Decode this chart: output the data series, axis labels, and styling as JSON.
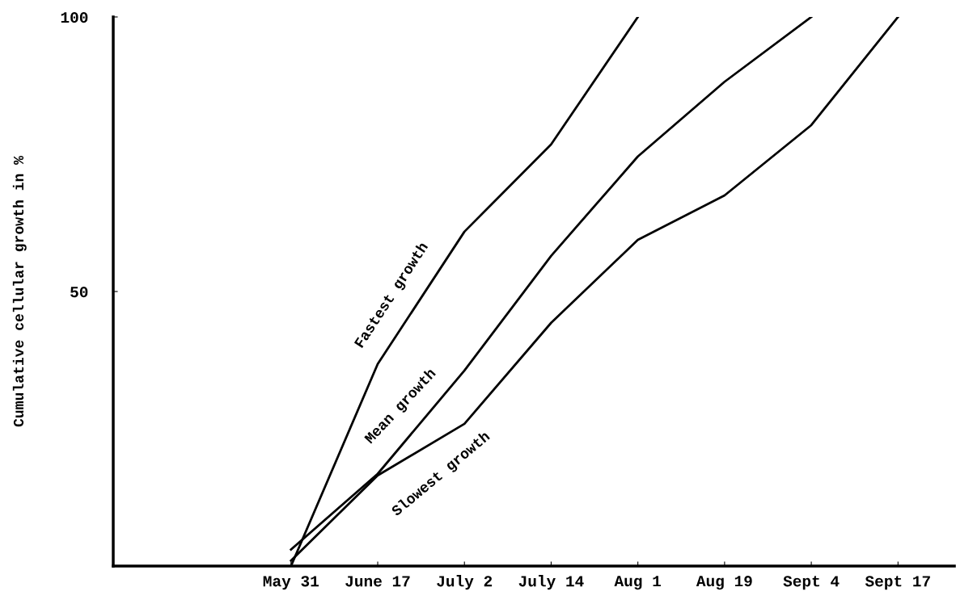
{
  "chart_data": {
    "type": "line",
    "ylabel": "Cumulative cellular growth in %",
    "categories": [
      null,
      null,
      "May 31",
      "June 17",
      "July 2",
      "July 14",
      "Aug 1",
      "Aug 19",
      "Sept 4",
      "Sept 17"
    ],
    "series": [
      {
        "name": "Fastest growth",
        "color": "#000000",
        "values": [
          null,
          null,
          0,
          36.8,
          60.9,
          76.8,
          100,
          null,
          null,
          null
        ]
      },
      {
        "name": "Mean growth",
        "color": "#000000",
        "values": [
          null,
          null,
          3,
          16.8,
          35.6,
          56.5,
          74.6,
          88.2,
          100,
          null
        ]
      },
      {
        "name": "Slowest growth",
        "color": "#000000",
        "values": [
          null,
          null,
          1,
          16.5,
          25.9,
          44.3,
          59.4,
          67.5,
          80.3,
          100
        ]
      }
    ],
    "ylim": [
      0,
      100
    ],
    "yticks": [
      50,
      100
    ],
    "grid": false,
    "legend": false,
    "marker": "none",
    "line_style": "solid"
  }
}
